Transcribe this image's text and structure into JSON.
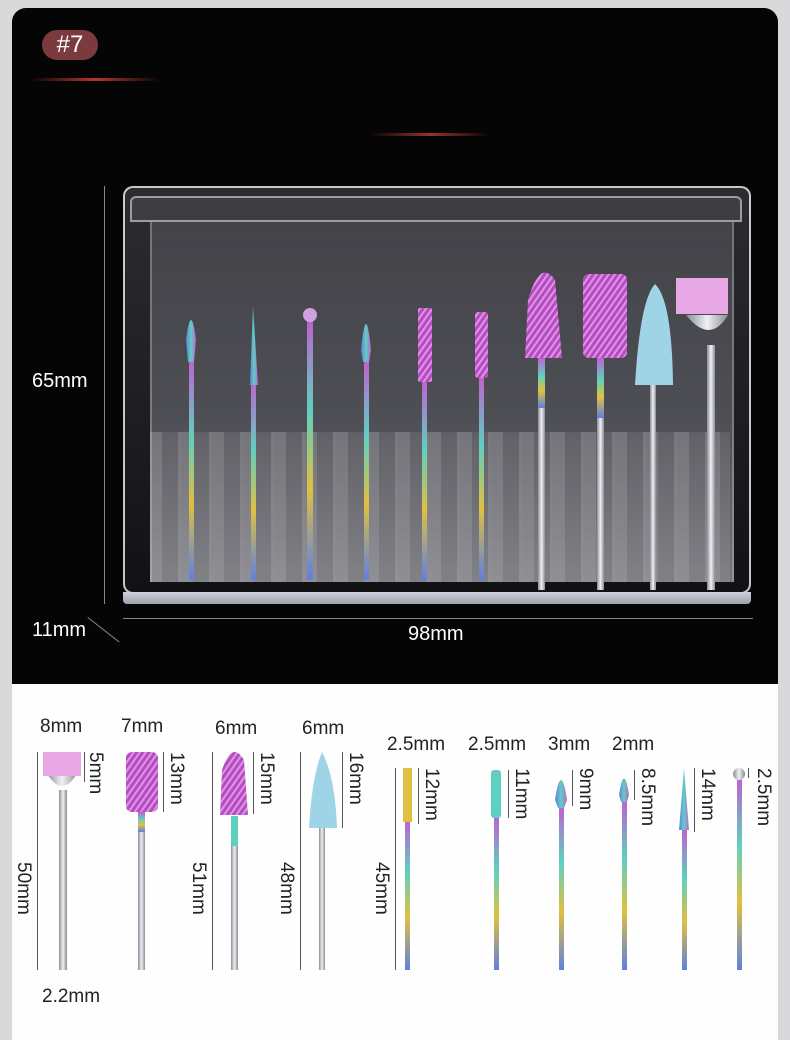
{
  "badge": "#7",
  "case_dimensions": {
    "height": "65mm",
    "depth": "11mm",
    "width": "98mm"
  },
  "bits": [
    {
      "tip": "8mm",
      "head": "5mm",
      "length": "50mm",
      "shank": "2.2mm"
    },
    {
      "tip": "7mm",
      "head": "13mm"
    },
    {
      "tip": "6mm",
      "head": "15mm",
      "length": "51mm"
    },
    {
      "tip": "6mm",
      "head": "16mm",
      "length": "48mm"
    },
    {
      "tip": "2.5mm",
      "head": "12mm",
      "length": "45mm"
    },
    {
      "tip": "2.5mm",
      "head": "11mm"
    },
    {
      "tip": "3mm",
      "head": "9mm"
    },
    {
      "tip": "2mm",
      "head": "8.5mm"
    },
    {
      "tip": "",
      "head": "14mm"
    },
    {
      "tip": "",
      "head": "2.5mm"
    }
  ],
  "colors": {
    "badge": "#7a3a3e",
    "pink_brush": "#e8a8e6",
    "blue_cone": "#9fd3e6",
    "rainbow_a": "#5fd0c0",
    "rainbow_b": "#c060d0",
    "rainbow_c": "#e0c040"
  }
}
